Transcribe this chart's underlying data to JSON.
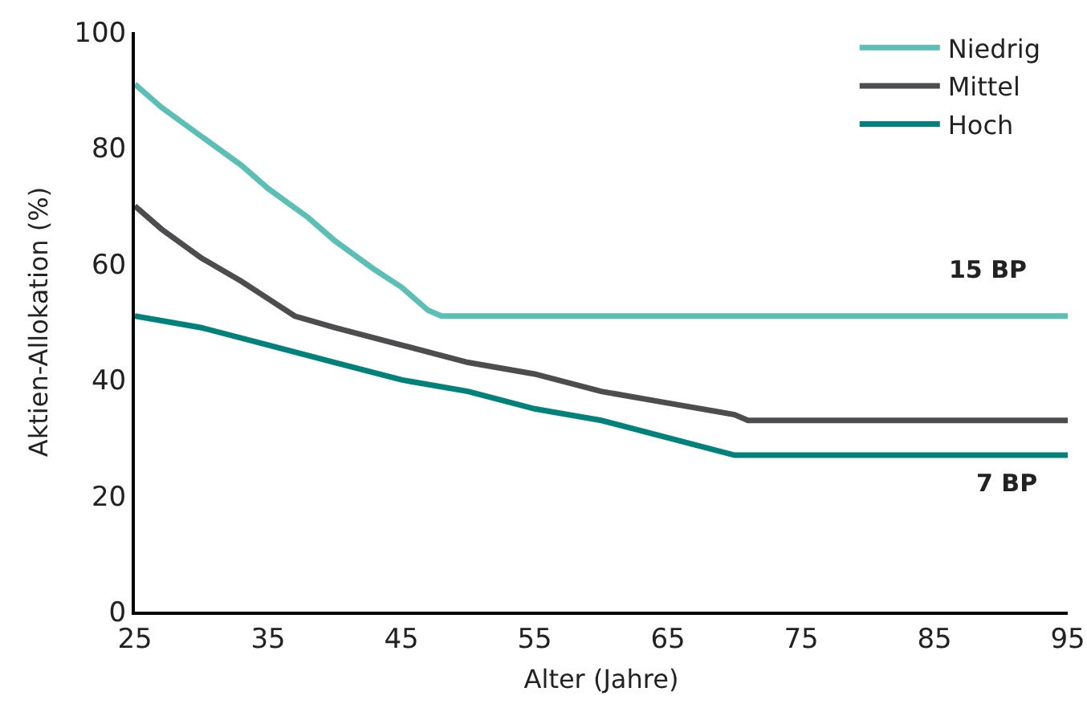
{
  "chart_data": {
    "type": "line",
    "xlabel": "Alter (Jahre)",
    "ylabel": "Aktien-Allokation (%)",
    "xlim": [
      25,
      95
    ],
    "xticks": [
      25,
      35,
      45,
      55,
      65,
      75,
      85,
      95
    ],
    "ylim": [
      0,
      100
    ],
    "yticks": [
      0,
      20,
      40,
      60,
      80,
      100
    ],
    "grid": false,
    "legend": "top right",
    "marker": "none",
    "line_style": "solid",
    "series": [
      {
        "name": "Niedrig",
        "color": "#5bbfb5",
        "x": [
          25,
          27,
          30,
          33,
          35,
          38,
          40,
          43,
          45,
          47,
          48,
          95
        ],
        "values": [
          91,
          87,
          82,
          77,
          73,
          68,
          64,
          59,
          56,
          52,
          51,
          51
        ]
      },
      {
        "name": "Mittel",
        "color": "#4d4d4f",
        "x": [
          25,
          27,
          30,
          33,
          35,
          37,
          40,
          45,
          50,
          55,
          60,
          65,
          70,
          71,
          95
        ],
        "values": [
          70,
          66,
          61,
          57,
          54,
          51,
          49,
          46,
          43,
          41,
          38,
          36,
          34,
          33,
          33
        ]
      },
      {
        "name": "Hoch",
        "color": "#00827a",
        "x": [
          25,
          30,
          35,
          40,
          45,
          50,
          55,
          60,
          65,
          70,
          95
        ],
        "values": [
          51,
          49,
          46,
          43,
          40,
          38,
          35,
          33,
          30,
          27,
          27
        ]
      }
    ],
    "annotations": [
      "15 BP",
      "7 BP"
    ]
  }
}
